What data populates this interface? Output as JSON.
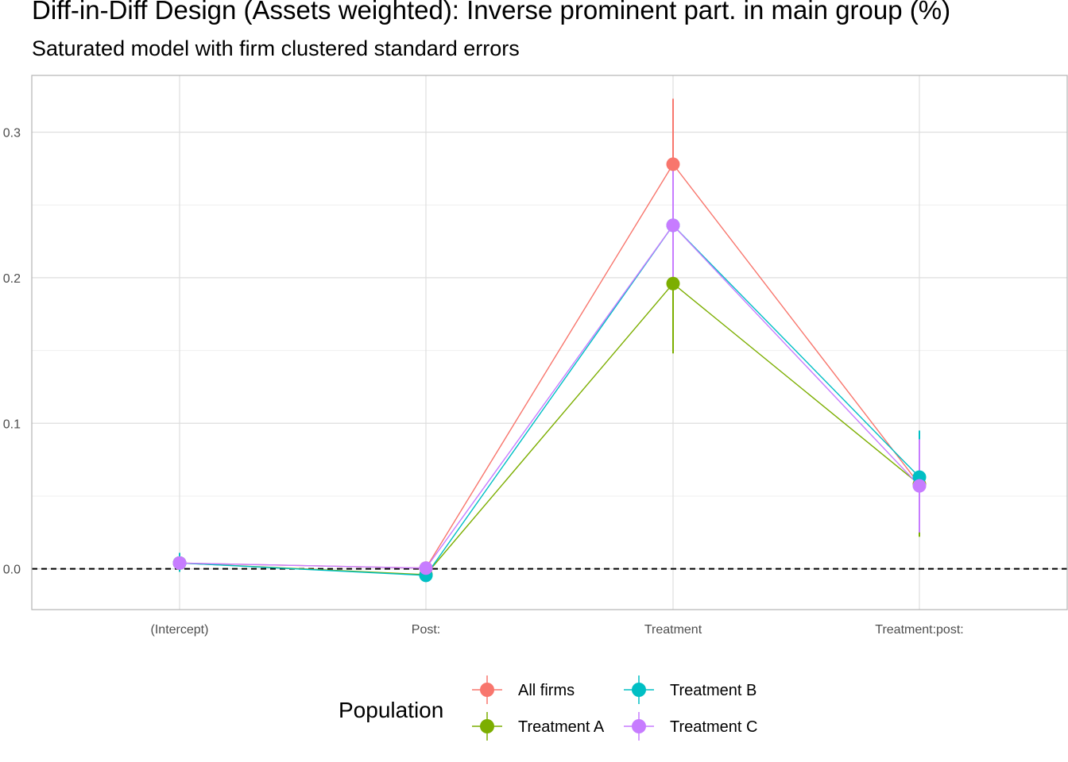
{
  "chart_data": {
    "type": "line",
    "title": "Diff-in-Diff Design (Assets weighted): Inverse prominent part. in main group (%)",
    "subtitle": "Saturated model with firm clustered standard errors",
    "categories": [
      "(Intercept)",
      "Post:",
      "Treatment",
      "Treatment:post:"
    ],
    "ylim": [
      -0.028,
      0.339
    ],
    "yticks": [
      0.0,
      0.1,
      0.2,
      0.3
    ],
    "ytick_labels": [
      "0.0",
      "0.1",
      "0.2",
      "0.3"
    ],
    "xlabel": "",
    "ylabel": "",
    "grid": true,
    "reference_line": {
      "y": 0.0,
      "style": "dashed"
    },
    "legend": {
      "title": "Population",
      "placement": "bottom"
    },
    "series": [
      {
        "name": "All firms",
        "color": "#F8766D",
        "values": [
          0.004,
          0.0005,
          0.278,
          0.058
        ],
        "lower": [
          0.001,
          -0.002,
          0.234,
          0.03
        ],
        "upper": [
          0.007,
          0.003,
          0.323,
          0.086
        ]
      },
      {
        "name": "Treatment A",
        "color": "#7CAE00",
        "values": [
          0.004,
          -0.004,
          0.196,
          0.058
        ],
        "lower": [
          -0.002,
          -0.008,
          0.148,
          0.022
        ],
        "upper": [
          0.01,
          0.0,
          0.244,
          0.094
        ]
      },
      {
        "name": "Treatment B",
        "color": "#00BFC4",
        "values": [
          0.004,
          -0.0045,
          0.236,
          0.063
        ],
        "lower": [
          -0.002,
          -0.009,
          0.194,
          0.031
        ],
        "upper": [
          0.011,
          0.0,
          0.278,
          0.095
        ]
      },
      {
        "name": "Treatment C",
        "color": "#C77CFF",
        "values": [
          0.004,
          0.0005,
          0.236,
          0.057
        ],
        "lower": [
          0.0,
          -0.002,
          0.196,
          0.025
        ],
        "upper": [
          0.008,
          0.003,
          0.276,
          0.089
        ]
      }
    ]
  }
}
